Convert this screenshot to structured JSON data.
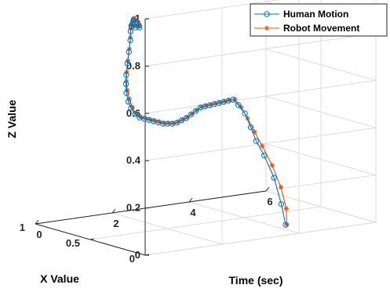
{
  "chart_data": {
    "type": "line",
    "projection": "3d",
    "xlabel": "X Value",
    "ylabel": "Time (sec)",
    "zlabel": "Z Value",
    "xlim": [
      0,
      1
    ],
    "ylim": [
      0,
      6
    ],
    "zlim": [
      0,
      1
    ],
    "x_ticks": [
      "0",
      "0.5",
      "1"
    ],
    "y_ticks": [
      "0",
      "2",
      "4",
      "6"
    ],
    "z_ticks": [
      "0",
      "0.2",
      "0.4",
      "0.6",
      "0.8",
      "1"
    ],
    "grid": true,
    "legend": "top-right",
    "colors": {
      "human": "#0072BD",
      "robot": "#D95319"
    },
    "series": [
      {
        "name": "Human Motion",
        "marker": "circle",
        "points": [
          [
            0.02,
            3.71,
            0.04
          ],
          [
            0.07,
            3.74,
            0.12
          ],
          [
            0.15,
            3.78,
            0.22
          ],
          [
            0.25,
            3.81,
            0.3
          ],
          [
            0.33,
            3.83,
            0.35
          ],
          [
            0.39,
            3.86,
            0.4
          ],
          [
            0.45,
            3.88,
            0.45
          ],
          [
            0.5,
            3.85,
            0.48
          ],
          [
            0.53,
            3.8,
            0.5
          ],
          [
            0.52,
            3.65,
            0.5
          ],
          [
            0.51,
            3.5,
            0.5
          ],
          [
            0.5,
            3.35,
            0.5
          ],
          [
            0.49,
            3.2,
            0.5
          ],
          [
            0.48,
            3.05,
            0.5
          ],
          [
            0.47,
            2.9,
            0.5
          ],
          [
            0.46,
            2.75,
            0.5
          ],
          [
            0.45,
            2.6,
            0.49
          ],
          [
            0.44,
            2.45,
            0.48
          ],
          [
            0.43,
            2.3,
            0.47
          ],
          [
            0.42,
            2.15,
            0.465
          ],
          [
            0.41,
            2.0,
            0.46
          ],
          [
            0.4,
            1.85,
            0.46
          ],
          [
            0.39,
            1.7,
            0.465
          ],
          [
            0.38,
            1.55,
            0.47
          ],
          [
            0.37,
            1.4,
            0.48
          ],
          [
            0.36,
            1.25,
            0.49
          ],
          [
            0.35,
            1.1,
            0.5
          ],
          [
            0.34,
            0.95,
            0.51
          ],
          [
            0.33,
            0.8,
            0.52
          ],
          [
            0.32,
            0.65,
            0.54
          ],
          [
            0.31,
            0.52,
            0.57
          ],
          [
            0.3,
            0.42,
            0.6
          ],
          [
            0.29,
            0.34,
            0.64
          ],
          [
            0.28,
            0.3,
            0.68
          ],
          [
            0.27,
            0.28,
            0.72
          ],
          [
            0.26,
            0.28,
            0.77
          ],
          [
            0.25,
            0.29,
            0.82
          ],
          [
            0.24,
            0.3,
            0.87
          ],
          [
            0.23,
            0.28,
            0.91
          ],
          [
            0.21,
            0.25,
            0.935
          ],
          [
            0.23,
            0.34,
            0.945
          ],
          [
            0.26,
            0.44,
            0.95
          ],
          [
            0.28,
            0.5,
            0.945
          ],
          [
            0.28,
            0.58,
            0.935
          ],
          [
            0.25,
            0.55,
            0.925
          ],
          [
            0.21,
            0.45,
            0.925
          ],
          [
            0.2,
            0.32,
            0.93
          ],
          [
            0.21,
            0.24,
            0.935
          ]
        ]
      },
      {
        "name": "Robot Movement",
        "marker": "asterisk",
        "points": [
          [
            0.02,
            3.74,
            0.04
          ],
          [
            0.06,
            3.84,
            0.1
          ],
          [
            0.13,
            3.9,
            0.18
          ],
          [
            0.22,
            3.93,
            0.26
          ],
          [
            0.31,
            3.93,
            0.33
          ],
          [
            0.38,
            3.93,
            0.38
          ],
          [
            0.44,
            3.92,
            0.43
          ],
          [
            0.49,
            3.9,
            0.47
          ],
          [
            0.53,
            3.85,
            0.5
          ],
          [
            0.53,
            3.7,
            0.5
          ],
          [
            0.52,
            3.55,
            0.5
          ],
          [
            0.51,
            3.4,
            0.5
          ],
          [
            0.5,
            3.25,
            0.5
          ],
          [
            0.49,
            3.1,
            0.5
          ],
          [
            0.48,
            2.95,
            0.5
          ],
          [
            0.47,
            2.8,
            0.5
          ],
          [
            0.46,
            2.65,
            0.49
          ],
          [
            0.45,
            2.5,
            0.48
          ],
          [
            0.44,
            2.35,
            0.47
          ],
          [
            0.43,
            2.2,
            0.465
          ],
          [
            0.42,
            2.05,
            0.46
          ],
          [
            0.41,
            1.9,
            0.46
          ],
          [
            0.4,
            1.75,
            0.465
          ],
          [
            0.39,
            1.6,
            0.47
          ],
          [
            0.38,
            1.45,
            0.48
          ],
          [
            0.37,
            1.3,
            0.49
          ],
          [
            0.36,
            1.15,
            0.5
          ],
          [
            0.35,
            1.0,
            0.51
          ],
          [
            0.34,
            0.85,
            0.52
          ],
          [
            0.33,
            0.7,
            0.54
          ],
          [
            0.32,
            0.58,
            0.57
          ],
          [
            0.31,
            0.47,
            0.61
          ],
          [
            0.3,
            0.39,
            0.65
          ],
          [
            0.29,
            0.34,
            0.69
          ],
          [
            0.28,
            0.32,
            0.73
          ],
          [
            0.27,
            0.32,
            0.78
          ],
          [
            0.26,
            0.33,
            0.83
          ],
          [
            0.25,
            0.33,
            0.88
          ],
          [
            0.24,
            0.31,
            0.92
          ],
          [
            0.22,
            0.27,
            0.94
          ],
          [
            0.24,
            0.37,
            0.95
          ],
          [
            0.27,
            0.47,
            0.955
          ],
          [
            0.29,
            0.54,
            0.95
          ],
          [
            0.29,
            0.61,
            0.94
          ],
          [
            0.26,
            0.58,
            0.93
          ],
          [
            0.22,
            0.48,
            0.93
          ],
          [
            0.21,
            0.35,
            0.935
          ],
          [
            0.22,
            0.26,
            0.94
          ]
        ]
      }
    ]
  }
}
